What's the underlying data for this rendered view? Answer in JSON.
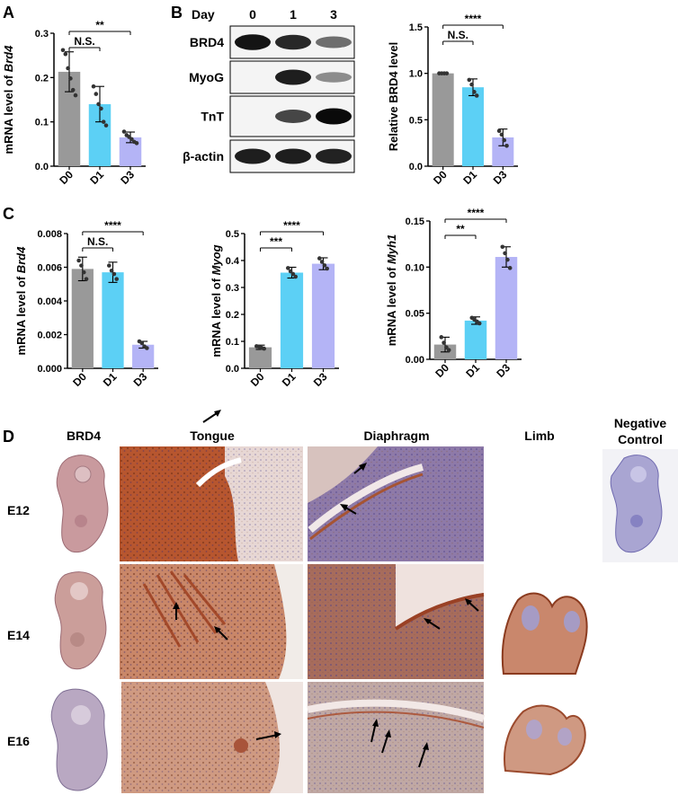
{
  "panel_letters": [
    "A",
    "B",
    "C",
    "D"
  ],
  "colors": {
    "d0": "#999999",
    "d1": "#5cd0f5",
    "d3": "#b4b4f6",
    "axis": "#000000"
  },
  "chart_data": [
    {
      "id": "A",
      "type": "bar",
      "categories": [
        "D0",
        "D1",
        "D3"
      ],
      "values": [
        0.213,
        0.14,
        0.065
      ],
      "errors": [
        0.045,
        0.04,
        0.012
      ],
      "points": [
        [
          0.262,
          0.253,
          0.221,
          0.198,
          0.172,
          0.16
        ],
        [
          0.18,
          0.163,
          0.14,
          0.13,
          0.1,
          0.092
        ],
        [
          0.078,
          0.07,
          0.066,
          0.061,
          0.055,
          0.052
        ]
      ],
      "ylabel_pre": "mRNA level of ",
      "ylabel_gene": "Brd4",
      "ylim": [
        0,
        0.3
      ],
      "yticks": [
        "0.0",
        "0.1",
        "0.2",
        "0.3"
      ],
      "brackets": [
        {
          "from": 0,
          "to": 2,
          "label": "**"
        },
        {
          "from": 0,
          "to": 1,
          "label": "N.S."
        }
      ]
    },
    {
      "id": "B",
      "type": "bar",
      "categories": [
        "D0",
        "D1",
        "D3"
      ],
      "values": [
        1.0,
        0.85,
        0.31
      ],
      "errors": [
        0.0,
        0.09,
        0.09
      ],
      "points": [
        [
          1.0,
          1.0,
          1.0,
          1.0
        ],
        [
          0.93,
          0.88,
          0.8,
          0.76
        ],
        [
          0.38,
          0.34,
          0.28,
          0.22
        ]
      ],
      "ylabel_pre": "Relative BRD4 level",
      "ylabel_gene": "",
      "ylim": [
        0,
        1.5
      ],
      "yticks": [
        "0.0",
        "0.5",
        "1.0",
        "1.5"
      ],
      "brackets": [
        {
          "from": 0,
          "to": 2,
          "label": "****"
        },
        {
          "from": 0,
          "to": 1,
          "label": "N.S."
        }
      ]
    },
    {
      "id": "C1",
      "type": "bar",
      "categories": [
        "D0",
        "D1",
        "D3"
      ],
      "values": [
        0.0059,
        0.0057,
        0.0014
      ],
      "errors": [
        0.0007,
        0.0006,
        0.0002
      ],
      "points": [
        [
          0.0064,
          0.0061,
          0.0057,
          0.0053
        ],
        [
          0.0061,
          0.0058,
          0.0056,
          0.0053
        ],
        [
          0.0016,
          0.0015,
          0.0013,
          0.0012
        ]
      ],
      "ylabel_pre": "mRNA level of ",
      "ylabel_gene": "Brd4",
      "ylim": [
        0,
        0.008
      ],
      "yticks": [
        "0.000",
        "0.002",
        "0.004",
        "0.006",
        "0.008"
      ],
      "brackets": [
        {
          "from": 0,
          "to": 2,
          "label": "****"
        },
        {
          "from": 0,
          "to": 1,
          "label": "N.S."
        }
      ]
    },
    {
      "id": "C2",
      "type": "bar",
      "categories": [
        "D0",
        "D1",
        "D3"
      ],
      "values": [
        0.078,
        0.355,
        0.388
      ],
      "errors": [
        0.008,
        0.02,
        0.022
      ],
      "points": [
        [
          0.082,
          0.08,
          0.076,
          0.073
        ],
        [
          0.372,
          0.36,
          0.35,
          0.34
        ],
        [
          0.408,
          0.395,
          0.382,
          0.37
        ]
      ],
      "ylabel_pre": "mRNA level of ",
      "ylabel_gene": "Myog",
      "ylim": [
        0,
        0.5
      ],
      "yticks": [
        "0.0",
        "0.1",
        "0.2",
        "0.3",
        "0.4",
        "0.5"
      ],
      "brackets": [
        {
          "from": 0,
          "to": 2,
          "label": "****"
        },
        {
          "from": 0,
          "to": 1,
          "label": "***"
        }
      ]
    },
    {
      "id": "C3",
      "type": "bar",
      "categories": [
        "D0",
        "D1",
        "D3"
      ],
      "values": [
        0.016,
        0.042,
        0.111
      ],
      "errors": [
        0.008,
        0.004,
        0.011
      ],
      "points": [
        [
          0.024,
          0.018,
          0.013,
          0.01
        ],
        [
          0.045,
          0.043,
          0.041,
          0.039
        ],
        [
          0.122,
          0.115,
          0.108,
          0.099
        ]
      ],
      "ylabel_pre": "mRNA level of ",
      "ylabel_gene": "Myh1",
      "ylim": [
        0,
        0.15
      ],
      "yticks": [
        "0.00",
        "0.05",
        "0.10",
        "0.15"
      ],
      "brackets": [
        {
          "from": 0,
          "to": 2,
          "label": "****"
        },
        {
          "from": 0,
          "to": 1,
          "label": "**"
        }
      ]
    }
  ],
  "blot": {
    "day_label": "Day",
    "lanes": [
      "0",
      "1",
      "3"
    ],
    "rows": [
      {
        "label": "BRD4",
        "intensity": [
          0.95,
          0.85,
          0.5
        ]
      },
      {
        "label": "MyoG",
        "intensity": [
          0.0,
          0.9,
          0.35
        ]
      },
      {
        "label": "TnT",
        "intensity": [
          0.0,
          0.7,
          1.0
        ]
      },
      {
        "label": "β-actin",
        "intensity": [
          0.9,
          0.9,
          0.88
        ]
      }
    ]
  },
  "histology": {
    "columns": [
      "BRD4",
      "Tongue",
      "Diaphragm",
      "Limb"
    ],
    "negative_label_1": "Negative",
    "negative_label_2": "Control",
    "rows": [
      "E12",
      "E14",
      "E16"
    ]
  }
}
